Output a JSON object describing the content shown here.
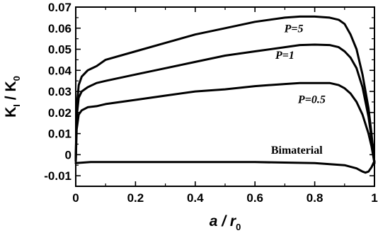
{
  "chart_data": {
    "type": "line",
    "xlabel": {
      "main": "a",
      "sep": " / ",
      "var": "r",
      "sub": "0"
    },
    "ylabel": {
      "var1": "K",
      "sub1": "I",
      "sep": " / ",
      "var2": "K",
      "sub2": "0"
    },
    "xlim": [
      0,
      1
    ],
    "ylim": [
      -0.015,
      0.07
    ],
    "xticks": [
      "0",
      "0.2",
      "0.4",
      "0.6",
      "0.8",
      "1"
    ],
    "yticks": [
      "-0.01",
      "0",
      "0.01",
      "0.02",
      "0.03",
      "0.04",
      "0.05",
      "0.06",
      "0.07"
    ],
    "grid": false,
    "series": [
      {
        "name": "P=5",
        "x": [
          0,
          0.003,
          0.01,
          0.02,
          0.04,
          0.07,
          0.1,
          0.2,
          0.3,
          0.4,
          0.5,
          0.6,
          0.7,
          0.75,
          0.8,
          0.85,
          0.88,
          0.9,
          0.92,
          0.94,
          0.96,
          0.98,
          0.99,
          1.0
        ],
        "y": [
          -0.003,
          0.022,
          0.033,
          0.037,
          0.04,
          0.042,
          0.045,
          0.049,
          0.053,
          0.057,
          0.06,
          0.063,
          0.065,
          0.0655,
          0.0655,
          0.065,
          0.064,
          0.062,
          0.057,
          0.05,
          0.038,
          0.022,
          0.01,
          -0.004
        ]
      },
      {
        "name": "P=1",
        "x": [
          0,
          0.003,
          0.01,
          0.02,
          0.04,
          0.07,
          0.1,
          0.2,
          0.3,
          0.4,
          0.5,
          0.6,
          0.7,
          0.75,
          0.8,
          0.85,
          0.88,
          0.9,
          0.92,
          0.94,
          0.96,
          0.98,
          0.99,
          1.0
        ],
        "y": [
          -0.003,
          0.018,
          0.027,
          0.03,
          0.032,
          0.034,
          0.035,
          0.038,
          0.041,
          0.044,
          0.047,
          0.049,
          0.051,
          0.052,
          0.0522,
          0.052,
          0.051,
          0.049,
          0.046,
          0.041,
          0.032,
          0.018,
          0.008,
          -0.004
        ]
      },
      {
        "name": "P=0.5",
        "x": [
          0,
          0.003,
          0.01,
          0.02,
          0.04,
          0.07,
          0.1,
          0.2,
          0.3,
          0.4,
          0.5,
          0.6,
          0.7,
          0.75,
          0.8,
          0.85,
          0.88,
          0.9,
          0.92,
          0.94,
          0.96,
          0.98,
          0.99,
          1.0
        ],
        "y": [
          -0.003,
          0.012,
          0.019,
          0.021,
          0.0225,
          0.023,
          0.024,
          0.026,
          0.028,
          0.03,
          0.031,
          0.0325,
          0.0335,
          0.034,
          0.034,
          0.034,
          0.033,
          0.0315,
          0.029,
          0.025,
          0.019,
          0.01,
          0.004,
          -0.004
        ]
      },
      {
        "name": "Bimaterial",
        "x": [
          0,
          0.05,
          0.2,
          0.4,
          0.6,
          0.8,
          0.9,
          0.94,
          0.96,
          0.97,
          0.98,
          0.99,
          1.0
        ],
        "y": [
          -0.004,
          -0.0035,
          -0.0035,
          -0.0035,
          -0.0035,
          -0.004,
          -0.005,
          -0.0065,
          -0.008,
          -0.0085,
          -0.008,
          -0.006,
          -0.003
        ]
      }
    ],
    "annotations": [
      {
        "text": "P=5",
        "x": 0.73,
        "y": 0.058,
        "style": "italic"
      },
      {
        "text": "P=1",
        "x": 0.7,
        "y": 0.0455,
        "style": "italic"
      },
      {
        "text": "P=0.5",
        "x": 0.79,
        "y": 0.0245,
        "style": "italic"
      },
      {
        "text": "Bimaterial",
        "x": 0.74,
        "y": 0.0005,
        "style": "upright"
      }
    ]
  }
}
